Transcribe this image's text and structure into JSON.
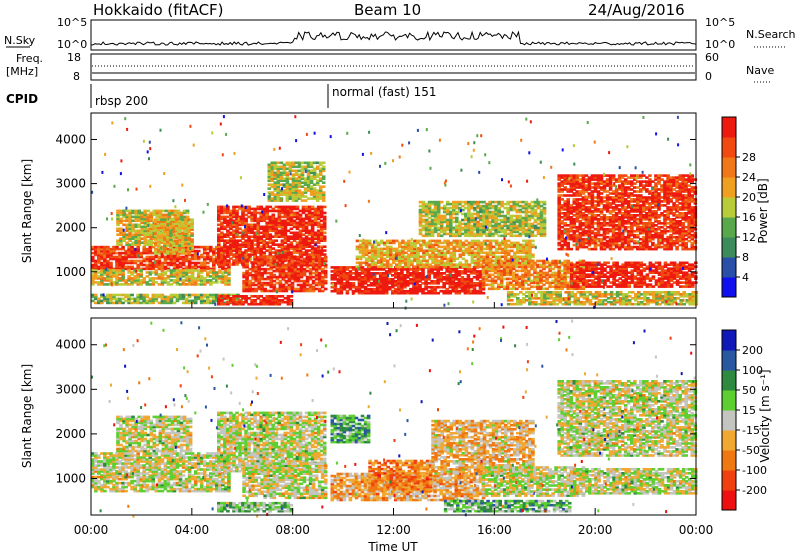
{
  "header": {
    "station": "Hokkaido (fitACF)",
    "beam": "Beam 10",
    "date": "24/Aug/2016"
  },
  "strips": {
    "nsky_label": "N.Sky",
    "nsearch_label": "N.Search",
    "noise_ticks": [
      "10^5",
      "10^0"
    ],
    "freq_label_line1": "Freq.",
    "freq_label_line2": "[MHz]",
    "freq_ticks": [
      "18",
      "8"
    ],
    "nave_label": "Nave",
    "nave_ticks": [
      "60",
      "0"
    ],
    "cpid_label": "CPID",
    "cpid_modes": [
      {
        "start": 0,
        "label": "rbsp 200"
      },
      {
        "start": 9.5,
        "label": "normal (fast) 151"
      }
    ]
  },
  "colors": {
    "power_scale": [
      "#1010ee",
      "#2a4fa8",
      "#3d8a5a",
      "#5aa84c",
      "#b8cc3a",
      "#f0a020",
      "#f07818",
      "#f04a10",
      "#ee1a10"
    ],
    "velocity_scale": [
      "#1018b8",
      "#2a58a0",
      "#2e8a3e",
      "#5ecf30",
      "#c4c4c0",
      "#f0a830",
      "#f07810",
      "#f04010",
      "#ee1010"
    ]
  },
  "chart_data": [
    {
      "type": "heatmap",
      "name": "power",
      "xlabel": "",
      "ylabel": "Slant Range [km]",
      "xlim": [
        0,
        24
      ],
      "ylim": [
        180,
        4600
      ],
      "yticks": [
        1000,
        2000,
        3000,
        4000
      ],
      "colorbar_label": "Power [dB]",
      "colorbar_ticks": [
        "4",
        "8",
        "12",
        "16",
        "20",
        "24",
        "28"
      ],
      "colorbar_range": [
        0,
        32
      ],
      "regions": [
        {
          "t0": 0.0,
          "t1": 5.5,
          "r0": 1050,
          "r1": 1550,
          "level": 0.88
        },
        {
          "t0": 0.0,
          "t1": 5.5,
          "r0": 700,
          "r1": 1050,
          "level": 0.55
        },
        {
          "t0": 0.0,
          "t1": 6.0,
          "r0": 280,
          "r1": 500,
          "level": 0.45
        },
        {
          "t0": 1.0,
          "t1": 3.8,
          "r0": 1600,
          "r1": 2400,
          "level": 0.55
        },
        {
          "t0": 2.5,
          "t1": 4.0,
          "r0": 1400,
          "r1": 2200,
          "level": 0.6
        },
        {
          "t0": 5.0,
          "t1": 9.3,
          "r0": 1150,
          "r1": 2500,
          "level": 0.92
        },
        {
          "t0": 6.0,
          "t1": 9.3,
          "r0": 550,
          "r1": 1350,
          "level": 0.9
        },
        {
          "t0": 7.0,
          "t1": 9.2,
          "r0": 2600,
          "r1": 3500,
          "level": 0.5
        },
        {
          "t0": 5.0,
          "t1": 8.0,
          "r0": 250,
          "r1": 450,
          "level": 0.95
        },
        {
          "t0": 9.5,
          "t1": 15.5,
          "r0": 500,
          "r1": 1100,
          "level": 0.96
        },
        {
          "t0": 10.5,
          "t1": 17.5,
          "r0": 1100,
          "r1": 1700,
          "level": 0.62
        },
        {
          "t0": 13.0,
          "t1": 18.0,
          "r0": 1800,
          "r1": 2600,
          "level": 0.5
        },
        {
          "t0": 15.5,
          "t1": 19.5,
          "r0": 600,
          "r1": 1250,
          "level": 0.7
        },
        {
          "t0": 18.5,
          "t1": 24.0,
          "r0": 1500,
          "r1": 3200,
          "level": 0.9
        },
        {
          "t0": 19.0,
          "t1": 24.0,
          "r0": 650,
          "r1": 1200,
          "level": 0.95
        },
        {
          "t0": 16.5,
          "t1": 24.0,
          "r0": 250,
          "r1": 550,
          "level": 0.55
        }
      ]
    },
    {
      "type": "heatmap",
      "name": "velocity",
      "xlabel": "Time UT",
      "ylabel": "Slant Range [km]",
      "xlim": [
        0,
        24
      ],
      "ylim": [
        180,
        4600
      ],
      "yticks": [
        1000,
        2000,
        3000,
        4000
      ],
      "xticks": [
        "00:00",
        "04:00",
        "08:00",
        "12:00",
        "16:00",
        "20:00",
        "00:00"
      ],
      "colorbar_label": "Velocity [m s⁻¹]",
      "colorbar_ticks": [
        "200",
        "100",
        "50",
        "15",
        "-15",
        "-50",
        "-100",
        "-200"
      ],
      "colorbar_range": [
        -250,
        250
      ],
      "regions": [
        {
          "t0": 0.0,
          "t1": 5.5,
          "r0": 1050,
          "r1": 1550,
          "level": 0.5
        },
        {
          "t0": 0.0,
          "t1": 5.5,
          "r0": 700,
          "r1": 1050,
          "level": 0.5
        },
        {
          "t0": 1.0,
          "t1": 4.0,
          "r0": 1600,
          "r1": 2400,
          "level": 0.5
        },
        {
          "t0": 5.0,
          "t1": 9.3,
          "r0": 1150,
          "r1": 2500,
          "level": 0.5
        },
        {
          "t0": 6.0,
          "t1": 9.3,
          "r0": 550,
          "r1": 1350,
          "level": 0.5
        },
        {
          "t0": 5.0,
          "t1": 8.0,
          "r0": 250,
          "r1": 450,
          "level": 0.4
        },
        {
          "t0": 9.5,
          "t1": 11.0,
          "r0": 1800,
          "r1": 2400,
          "level": 0.32
        },
        {
          "t0": 9.5,
          "t1": 15.5,
          "r0": 500,
          "r1": 1100,
          "level": 0.62
        },
        {
          "t0": 11.0,
          "t1": 13.5,
          "r0": 700,
          "r1": 1400,
          "level": 0.72
        },
        {
          "t0": 13.5,
          "t1": 17.5,
          "r0": 1100,
          "r1": 2300,
          "level": 0.6
        },
        {
          "t0": 15.5,
          "t1": 19.5,
          "r0": 600,
          "r1": 1250,
          "level": 0.5
        },
        {
          "t0": 18.5,
          "t1": 24.0,
          "r0": 1500,
          "r1": 3200,
          "level": 0.5
        },
        {
          "t0": 19.0,
          "t1": 24.0,
          "r0": 650,
          "r1": 1200,
          "level": 0.5
        },
        {
          "t0": 14.0,
          "t1": 19.0,
          "r0": 250,
          "r1": 500,
          "level": 0.35
        }
      ]
    }
  ]
}
